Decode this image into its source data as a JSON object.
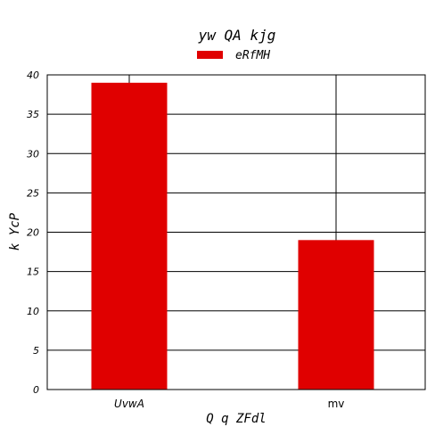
{
  "chart_data": {
    "type": "bar",
    "title": "yw QA kjg",
    "xlabel": "Q q ZFdl",
    "ylabel": "k YcP",
    "categories": [
      "UvwA",
      "mv"
    ],
    "series": [
      {
        "name": "eRfMH",
        "values": [
          39,
          19
        ]
      }
    ],
    "ylim": [
      0,
      40
    ],
    "yticks": [
      0,
      5,
      10,
      15,
      20,
      25,
      30,
      35,
      40
    ],
    "grid": "horizontal",
    "legend_position": "top-center",
    "bar_color": "#e00000"
  }
}
